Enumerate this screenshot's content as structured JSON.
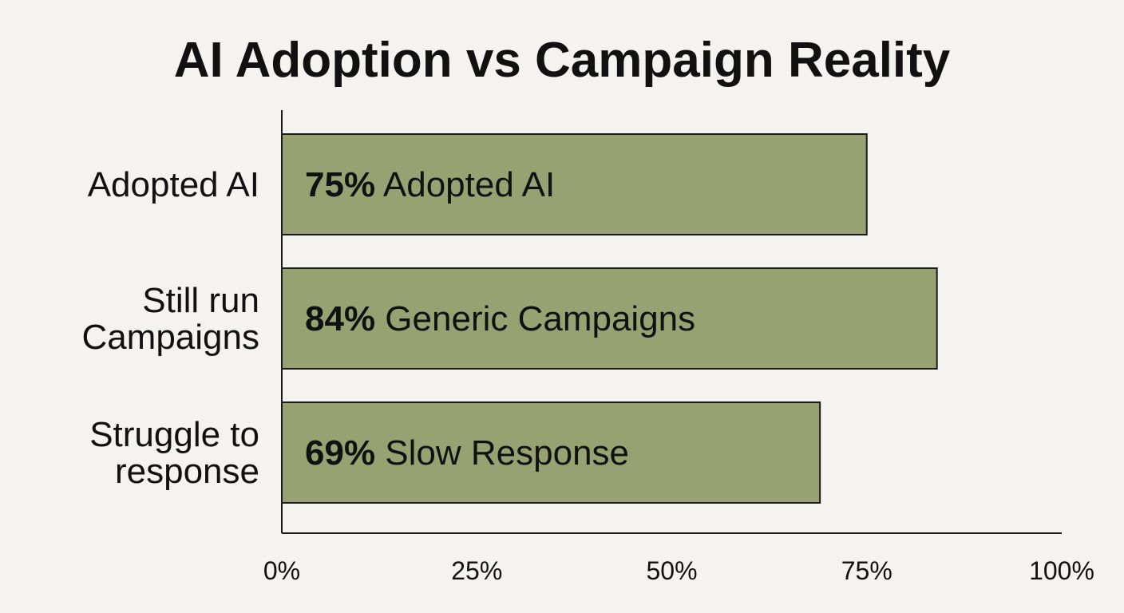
{
  "chart_data": {
    "type": "bar",
    "orientation": "horizontal",
    "title": "AI Adoption vs Campaign Reality",
    "categories": [
      [
        "Adopted AI"
      ],
      [
        "Still run",
        "Campaigns"
      ],
      [
        "Struggle to",
        "response"
      ]
    ],
    "values": [
      75,
      84,
      69
    ],
    "bar_labels": [
      {
        "value": "75%",
        "text": "Adopted AI"
      },
      {
        "value": "84%",
        "text": "Generic Campaigns"
      },
      {
        "value": "69%",
        "text": "Slow Response"
      }
    ],
    "xlim": [
      0,
      100
    ],
    "x_ticks": [
      0,
      25,
      50,
      75,
      100
    ],
    "x_tick_labels": [
      "0%",
      "25%",
      "50%",
      "75%",
      "100%"
    ],
    "grid": false,
    "colors": {
      "bar": "#97a273",
      "background": "#f4f3ef",
      "text": "#111111"
    }
  }
}
